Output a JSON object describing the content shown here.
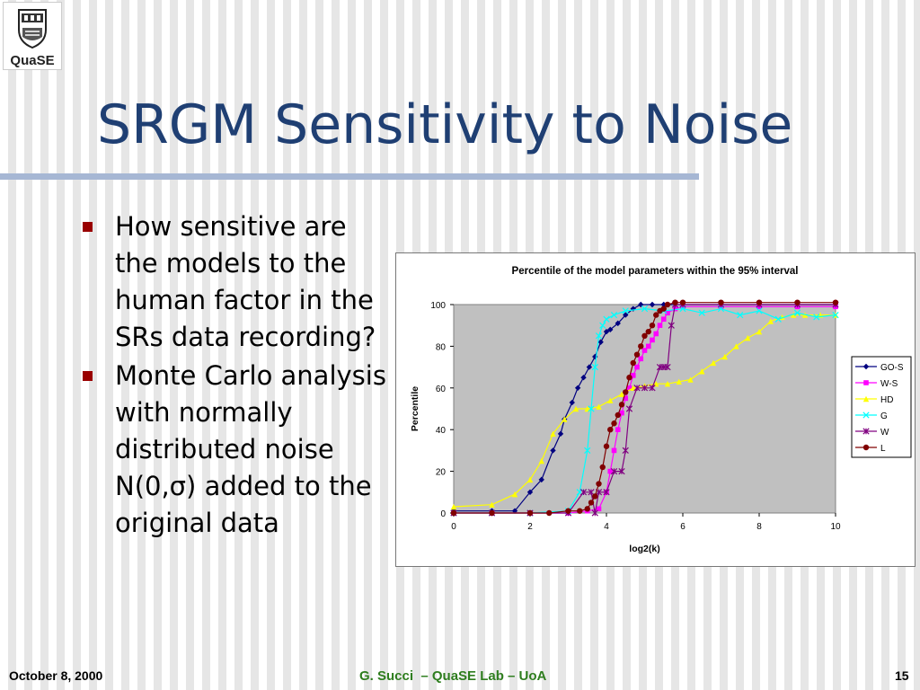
{
  "slide": {
    "logo_text": "QuaSE",
    "title": "SRGM Sensitivity to Noise",
    "bullets": [
      "How sensitive are the models to the human factor in the SRs data recording?",
      "Monte Carlo analysis with normally distributed noise N(0,σ) added to the original data"
    ],
    "footer_left": "October 8, 2000",
    "footer_center": "G. Succi  – QuaSE Lab – UoA",
    "footer_right": "15"
  },
  "chart_data": {
    "type": "line",
    "title": "Percentile of the model parameters within the 95% interval",
    "xlabel": "log2(k)",
    "ylabel": "Percentile",
    "xlim": [
      0,
      10
    ],
    "ylim": [
      0,
      100
    ],
    "xticks": [
      0,
      2,
      4,
      6,
      8,
      10
    ],
    "yticks": [
      0,
      20,
      40,
      60,
      80,
      100
    ],
    "plot_background": "#c0c0c0",
    "legend_position": "right",
    "series": [
      {
        "name": "GO-S",
        "color": "#000080",
        "marker": "diamond",
        "x": [
          0,
          1,
          1.6,
          2.0,
          2.3,
          2.6,
          2.8,
          2.9,
          3.1,
          3.25,
          3.4,
          3.55,
          3.7,
          3.85,
          4.0,
          4.1,
          4.3,
          4.5,
          4.7,
          4.9,
          5.2,
          5.5,
          6,
          7,
          8,
          9,
          10
        ],
        "y": [
          1,
          1,
          1,
          10,
          16,
          30,
          38,
          45,
          53,
          60,
          65,
          70,
          75,
          82,
          87,
          88,
          91,
          95,
          98,
          100,
          100,
          100,
          100,
          100,
          100,
          100,
          100
        ]
      },
      {
        "name": "W-S",
        "color": "#ff00ff",
        "marker": "square",
        "x": [
          0,
          1,
          2,
          3,
          3.5,
          3.8,
          4.0,
          4.1,
          4.2,
          4.3,
          4.4,
          4.5,
          4.6,
          4.7,
          4.8,
          4.9,
          5.0,
          5.1,
          5.2,
          5.3,
          5.4,
          5.5,
          5.6,
          5.8,
          6.0,
          7,
          8,
          9,
          10
        ],
        "y": [
          0,
          0,
          0,
          0,
          1,
          2,
          10,
          20,
          30,
          40,
          48,
          55,
          60,
          66,
          70,
          74,
          78,
          80,
          83,
          86,
          90,
          93,
          96,
          98,
          99,
          99,
          99,
          99,
          99
        ]
      },
      {
        "name": "HD",
        "color": "#ffff00",
        "marker": "triangle",
        "x": [
          0,
          1,
          1.6,
          2.0,
          2.3,
          2.6,
          2.9,
          3.2,
          3.5,
          3.8,
          4.1,
          4.4,
          4.7,
          5.0,
          5.3,
          5.6,
          5.9,
          6.2,
          6.5,
          6.8,
          7.1,
          7.4,
          7.7,
          8.0,
          8.3,
          8.6,
          8.9,
          9.2,
          9.6,
          10
        ],
        "y": [
          3,
          4,
          9,
          16,
          25,
          38,
          45,
          50,
          50,
          51,
          54,
          57,
          60,
          61,
          62,
          62,
          63,
          64,
          68,
          72,
          75,
          80,
          84,
          87,
          92,
          94,
          95,
          95,
          95,
          95
        ]
      },
      {
        "name": "G",
        "color": "#00ffff",
        "marker": "cross",
        "x": [
          0,
          1,
          2,
          3,
          3.3,
          3.5,
          3.6,
          3.7,
          3.8,
          3.9,
          4.0,
          4.2,
          4.5,
          5.0,
          5.5,
          6.0,
          6.5,
          7.0,
          7.5,
          8.0,
          8.5,
          9.0,
          9.5,
          10
        ],
        "y": [
          0,
          0,
          0,
          1,
          10,
          30,
          50,
          70,
          85,
          90,
          93,
          95,
          97,
          98,
          97,
          98,
          96,
          98,
          95,
          97,
          93,
          96,
          94,
          95
        ]
      },
      {
        "name": "W",
        "color": "#800080",
        "marker": "asterisk",
        "x": [
          0,
          1,
          2,
          3,
          3.4,
          3.6,
          3.7,
          3.8,
          4.0,
          4.2,
          4.4,
          4.5,
          4.6,
          4.8,
          5.0,
          5.2,
          5.4,
          5.5,
          5.6,
          5.7,
          5.8,
          6,
          7,
          8,
          9,
          10
        ],
        "y": [
          0,
          0,
          0,
          0,
          10,
          10,
          0,
          10,
          10,
          20,
          20,
          30,
          50,
          60,
          60,
          60,
          70,
          70,
          70,
          90,
          100,
          100,
          100,
          100,
          100,
          100
        ]
      },
      {
        "name": "L",
        "color": "#800000",
        "marker": "circle",
        "x": [
          0,
          1,
          2,
          2.5,
          3.0,
          3.3,
          3.5,
          3.6,
          3.7,
          3.8,
          3.9,
          4.0,
          4.1,
          4.2,
          4.3,
          4.4,
          4.5,
          4.6,
          4.7,
          4.8,
          4.9,
          5.0,
          5.1,
          5.2,
          5.3,
          5.4,
          5.5,
          5.6,
          5.8,
          6,
          7,
          8,
          9,
          10
        ],
        "y": [
          0,
          0,
          0,
          0,
          1,
          1,
          2,
          5,
          8,
          14,
          22,
          32,
          40,
          43,
          47,
          52,
          58,
          65,
          72,
          76,
          80,
          85,
          87,
          90,
          95,
          97,
          98,
          100,
          101,
          101,
          101,
          101,
          101,
          101
        ]
      }
    ]
  }
}
